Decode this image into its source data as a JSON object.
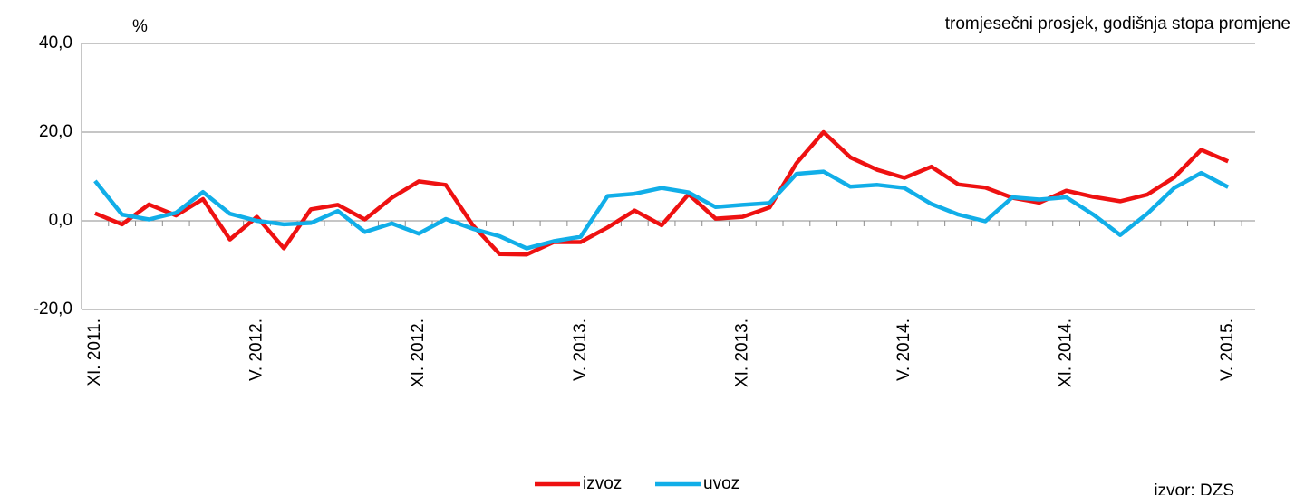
{
  "chart_data": {
    "type": "line",
    "y_label": "%",
    "subtitle": "tromjesečni prosjek, godišnja stopa promjene",
    "source": "izvor: DZS",
    "categories": [
      "XI. 2011.",
      null,
      null,
      null,
      null,
      null,
      "V. 2012.",
      null,
      null,
      null,
      null,
      null,
      "XI. 2012.",
      null,
      null,
      null,
      null,
      null,
      "V. 2013.",
      null,
      null,
      null,
      null,
      null,
      "XI. 2013.",
      null,
      null,
      null,
      null,
      null,
      "V. 2014.",
      null,
      null,
      null,
      null,
      null,
      "XI. 2014.",
      null,
      null,
      null,
      null,
      null,
      "V. 2015."
    ],
    "series": [
      {
        "name": "izvoz",
        "color": "#ee1111",
        "values": [
          1.7,
          -0.8,
          3.7,
          1.2,
          4.9,
          -4.2,
          0.9,
          -6.2,
          2.6,
          3.6,
          0.3,
          5.2,
          8.9,
          8.1,
          -1.0,
          -7.5,
          -7.6,
          -4.8,
          -4.8,
          -1.5,
          2.3,
          -1.0,
          6.0,
          0.5,
          0.9,
          3.0,
          13.0,
          20.0,
          14.3,
          11.5,
          9.7,
          12.2,
          8.2,
          7.5,
          5.2,
          4.1,
          6.8,
          5.4,
          4.4,
          5.9,
          9.8,
          16.0,
          13.4
        ]
      },
      {
        "name": "uvoz",
        "color": "#11aee8",
        "values": [
          9.0,
          1.4,
          0.3,
          1.8,
          6.5,
          1.6,
          0.0,
          -0.8,
          -0.5,
          2.2,
          -2.5,
          -0.6,
          -2.9,
          0.4,
          -1.8,
          -3.5,
          -6.2,
          -4.6,
          -3.6,
          5.6,
          6.1,
          7.4,
          6.4,
          3.1,
          3.6,
          4.0,
          10.6,
          11.1,
          7.7,
          8.1,
          7.4,
          3.8,
          1.4,
          -0.1,
          5.3,
          4.8,
          5.3,
          1.4,
          -3.2,
          1.6,
          7.4,
          10.8,
          7.6
        ]
      }
    ],
    "ylim": [
      -20,
      40
    ],
    "yticks": [
      {
        "value": -20,
        "label": "-20,0"
      },
      {
        "value": 0,
        "label": "0,0"
      },
      {
        "value": 20,
        "label": "20,0"
      },
      {
        "value": 40,
        "label": "40,0"
      }
    ],
    "grid": true,
    "legend": "bottom"
  }
}
